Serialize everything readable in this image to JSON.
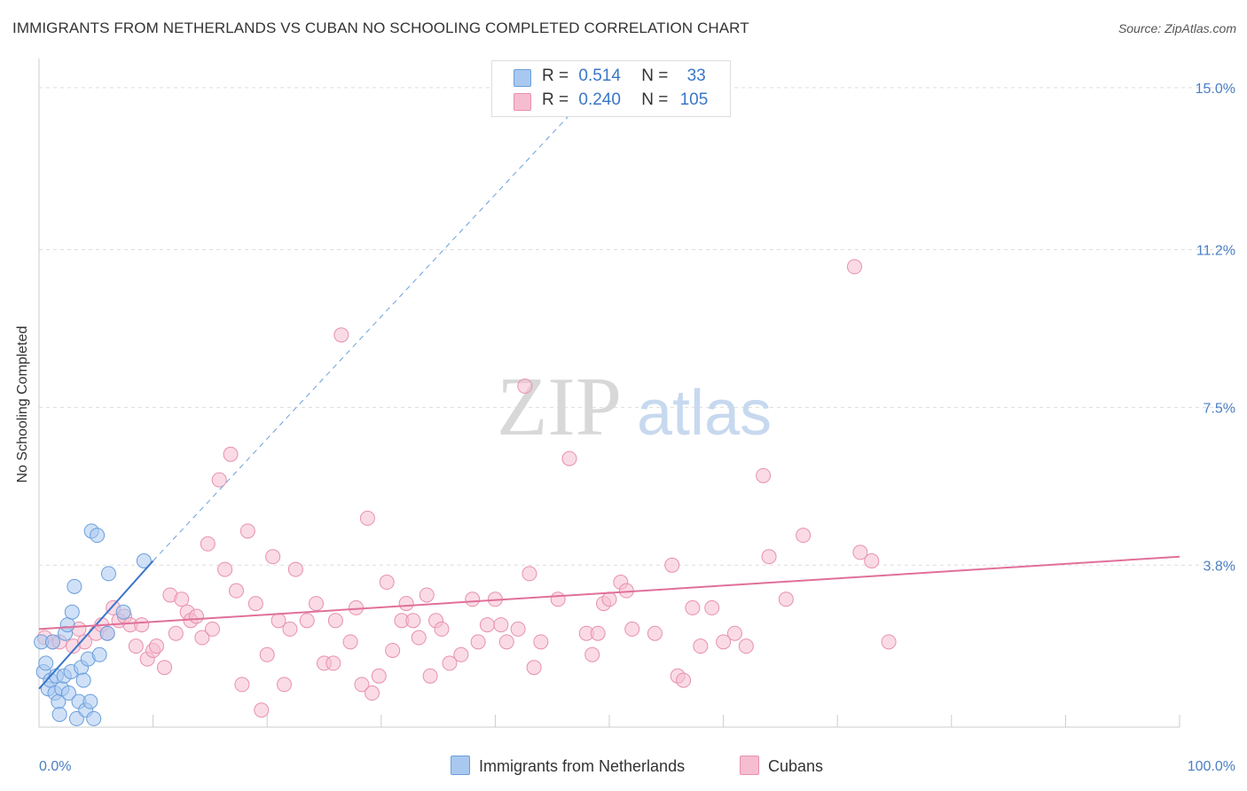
{
  "title": "IMMIGRANTS FROM NETHERLANDS VS CUBAN NO SCHOOLING COMPLETED CORRELATION CHART",
  "source": "Source: ZipAtlas.com",
  "watermark": {
    "zip": "ZIP",
    "atlas": "atlas"
  },
  "legend_top": {
    "rows": [
      {
        "r_label": "R =",
        "r_value": "0.514",
        "n_label": "N =",
        "n_value": "33"
      },
      {
        "r_label": "R =",
        "r_value": "0.240",
        "n_label": "N =",
        "n_value": "105"
      }
    ]
  },
  "legend_bottom": {
    "items": [
      {
        "label": "Immigrants from Netherlands"
      },
      {
        "label": "Cubans"
      }
    ]
  },
  "chart_data": {
    "type": "scatter",
    "title": "IMMIGRANTS FROM NETHERLANDS VS CUBAN NO SCHOOLING COMPLETED CORRELATION CHART",
    "xlabel": "",
    "ylabel": "No Schooling Completed",
    "xlim": [
      0,
      100
    ],
    "ylim": [
      0,
      15.6
    ],
    "x_tick_labels": [
      "0.0%",
      "100.0%"
    ],
    "y_ticks": [
      3.8,
      7.5,
      11.2,
      15.0
    ],
    "y_tick_labels": [
      "3.8%",
      "7.5%",
      "11.2%",
      "15.0%"
    ],
    "grid": true,
    "legend_position": "top-center",
    "colors": {
      "netherlands_fill": "#a9c8f0",
      "netherlands_stroke": "#6a9fdc",
      "netherlands_line": "#3a76c8",
      "cubans_fill": "#f6bdd0",
      "cubans_stroke": "#e890ad",
      "cubans_line": "#e0709a",
      "tick_label": "#4a7fc4",
      "grid": "#dddddd"
    },
    "series": [
      {
        "name": "Immigrants from Netherlands",
        "r": 0.514,
        "n": 33,
        "trend": {
          "x0": 0.0,
          "y0": 0.9,
          "x1": 10.0,
          "y1": 3.9,
          "dashed_to_x": 47.0,
          "dashed_to_y": 14.5
        },
        "points": [
          [
            0.2,
            2.0
          ],
          [
            0.4,
            1.3
          ],
          [
            0.6,
            1.5
          ],
          [
            0.8,
            0.9
          ],
          [
            1.0,
            1.1
          ],
          [
            1.2,
            2.0
          ],
          [
            1.4,
            0.8
          ],
          [
            1.5,
            1.2
          ],
          [
            1.7,
            0.6
          ],
          [
            1.8,
            0.3
          ],
          [
            2.0,
            0.9
          ],
          [
            2.2,
            1.2
          ],
          [
            2.3,
            2.2
          ],
          [
            2.5,
            2.4
          ],
          [
            2.6,
            0.8
          ],
          [
            2.8,
            1.3
          ],
          [
            2.9,
            2.7
          ],
          [
            3.1,
            3.3
          ],
          [
            3.3,
            0.2
          ],
          [
            3.5,
            0.6
          ],
          [
            3.7,
            1.4
          ],
          [
            3.9,
            1.1
          ],
          [
            4.1,
            0.4
          ],
          [
            4.3,
            1.6
          ],
          [
            4.5,
            0.6
          ],
          [
            4.6,
            4.6
          ],
          [
            4.8,
            0.2
          ],
          [
            5.1,
            4.5
          ],
          [
            5.3,
            1.7
          ],
          [
            6.0,
            2.2
          ],
          [
            6.1,
            3.6
          ],
          [
            7.4,
            2.7
          ],
          [
            9.2,
            3.9
          ]
        ]
      },
      {
        "name": "Cubans",
        "r": 0.24,
        "n": 105,
        "trend": {
          "x0": 0.0,
          "y0": 2.3,
          "x1": 100.0,
          "y1": 4.0
        },
        "points": [
          [
            0.5,
            2.1
          ],
          [
            1.2,
            2.0
          ],
          [
            1.8,
            2.0
          ],
          [
            3.0,
            1.9
          ],
          [
            3.5,
            2.3
          ],
          [
            4.0,
            2.0
          ],
          [
            5.0,
            2.2
          ],
          [
            5.5,
            2.4
          ],
          [
            6.0,
            2.2
          ],
          [
            6.5,
            2.8
          ],
          [
            7.0,
            2.5
          ],
          [
            7.5,
            2.6
          ],
          [
            8.0,
            2.4
          ],
          [
            8.5,
            1.9
          ],
          [
            9.0,
            2.4
          ],
          [
            9.5,
            1.6
          ],
          [
            10.0,
            1.8
          ],
          [
            10.3,
            1.9
          ],
          [
            11.0,
            1.4
          ],
          [
            11.5,
            3.1
          ],
          [
            12.0,
            2.2
          ],
          [
            12.5,
            3.0
          ],
          [
            13.0,
            2.7
          ],
          [
            13.3,
            2.5
          ],
          [
            13.8,
            2.6
          ],
          [
            14.3,
            2.1
          ],
          [
            14.8,
            4.3
          ],
          [
            15.2,
            2.3
          ],
          [
            15.8,
            5.8
          ],
          [
            16.3,
            3.7
          ],
          [
            16.8,
            6.4
          ],
          [
            17.3,
            3.2
          ],
          [
            17.8,
            1.0
          ],
          [
            18.3,
            4.6
          ],
          [
            19.0,
            2.9
          ],
          [
            19.5,
            0.4
          ],
          [
            20.0,
            1.7
          ],
          [
            20.5,
            4.0
          ],
          [
            21.0,
            2.5
          ],
          [
            21.5,
            1.0
          ],
          [
            22.0,
            2.3
          ],
          [
            22.5,
            3.7
          ],
          [
            23.5,
            2.5
          ],
          [
            24.3,
            2.9
          ],
          [
            25.0,
            1.5
          ],
          [
            25.8,
            1.5
          ],
          [
            26.0,
            2.5
          ],
          [
            26.5,
            9.2
          ],
          [
            27.3,
            2.0
          ],
          [
            27.8,
            2.8
          ],
          [
            28.3,
            1.0
          ],
          [
            28.8,
            4.9
          ],
          [
            29.2,
            0.8
          ],
          [
            29.8,
            1.2
          ],
          [
            30.5,
            3.4
          ],
          [
            31.0,
            1.8
          ],
          [
            31.8,
            2.5
          ],
          [
            32.2,
            2.9
          ],
          [
            32.8,
            2.5
          ],
          [
            33.3,
            2.1
          ],
          [
            34.0,
            3.1
          ],
          [
            34.3,
            1.2
          ],
          [
            34.8,
            2.5
          ],
          [
            35.3,
            2.3
          ],
          [
            36.0,
            1.5
          ],
          [
            37.0,
            1.7
          ],
          [
            38.0,
            3.0
          ],
          [
            38.5,
            2.0
          ],
          [
            39.3,
            2.4
          ],
          [
            40.0,
            3.0
          ],
          [
            40.5,
            2.4
          ],
          [
            41.0,
            2.0
          ],
          [
            42.0,
            2.3
          ],
          [
            42.6,
            8.0
          ],
          [
            43.0,
            3.6
          ],
          [
            43.4,
            1.4
          ],
          [
            44.0,
            2.0
          ],
          [
            45.5,
            3.0
          ],
          [
            46.5,
            6.3
          ],
          [
            48.0,
            2.2
          ],
          [
            48.5,
            1.7
          ],
          [
            49.0,
            2.2
          ],
          [
            49.5,
            2.9
          ],
          [
            50.0,
            3.0
          ],
          [
            51.0,
            3.4
          ],
          [
            51.5,
            3.2
          ],
          [
            52.0,
            2.3
          ],
          [
            54.0,
            2.2
          ],
          [
            55.5,
            3.8
          ],
          [
            56.0,
            1.2
          ],
          [
            56.5,
            1.1
          ],
          [
            57.3,
            2.8
          ],
          [
            58.0,
            1.9
          ],
          [
            59.0,
            2.8
          ],
          [
            60.0,
            2.0
          ],
          [
            61.0,
            2.2
          ],
          [
            62.0,
            1.9
          ],
          [
            63.5,
            5.9
          ],
          [
            64.0,
            4.0
          ],
          [
            65.5,
            3.0
          ],
          [
            67.0,
            4.5
          ],
          [
            71.5,
            10.8
          ],
          [
            72.0,
            4.1
          ],
          [
            73.0,
            3.9
          ],
          [
            74.5,
            2.0
          ]
        ]
      }
    ]
  }
}
